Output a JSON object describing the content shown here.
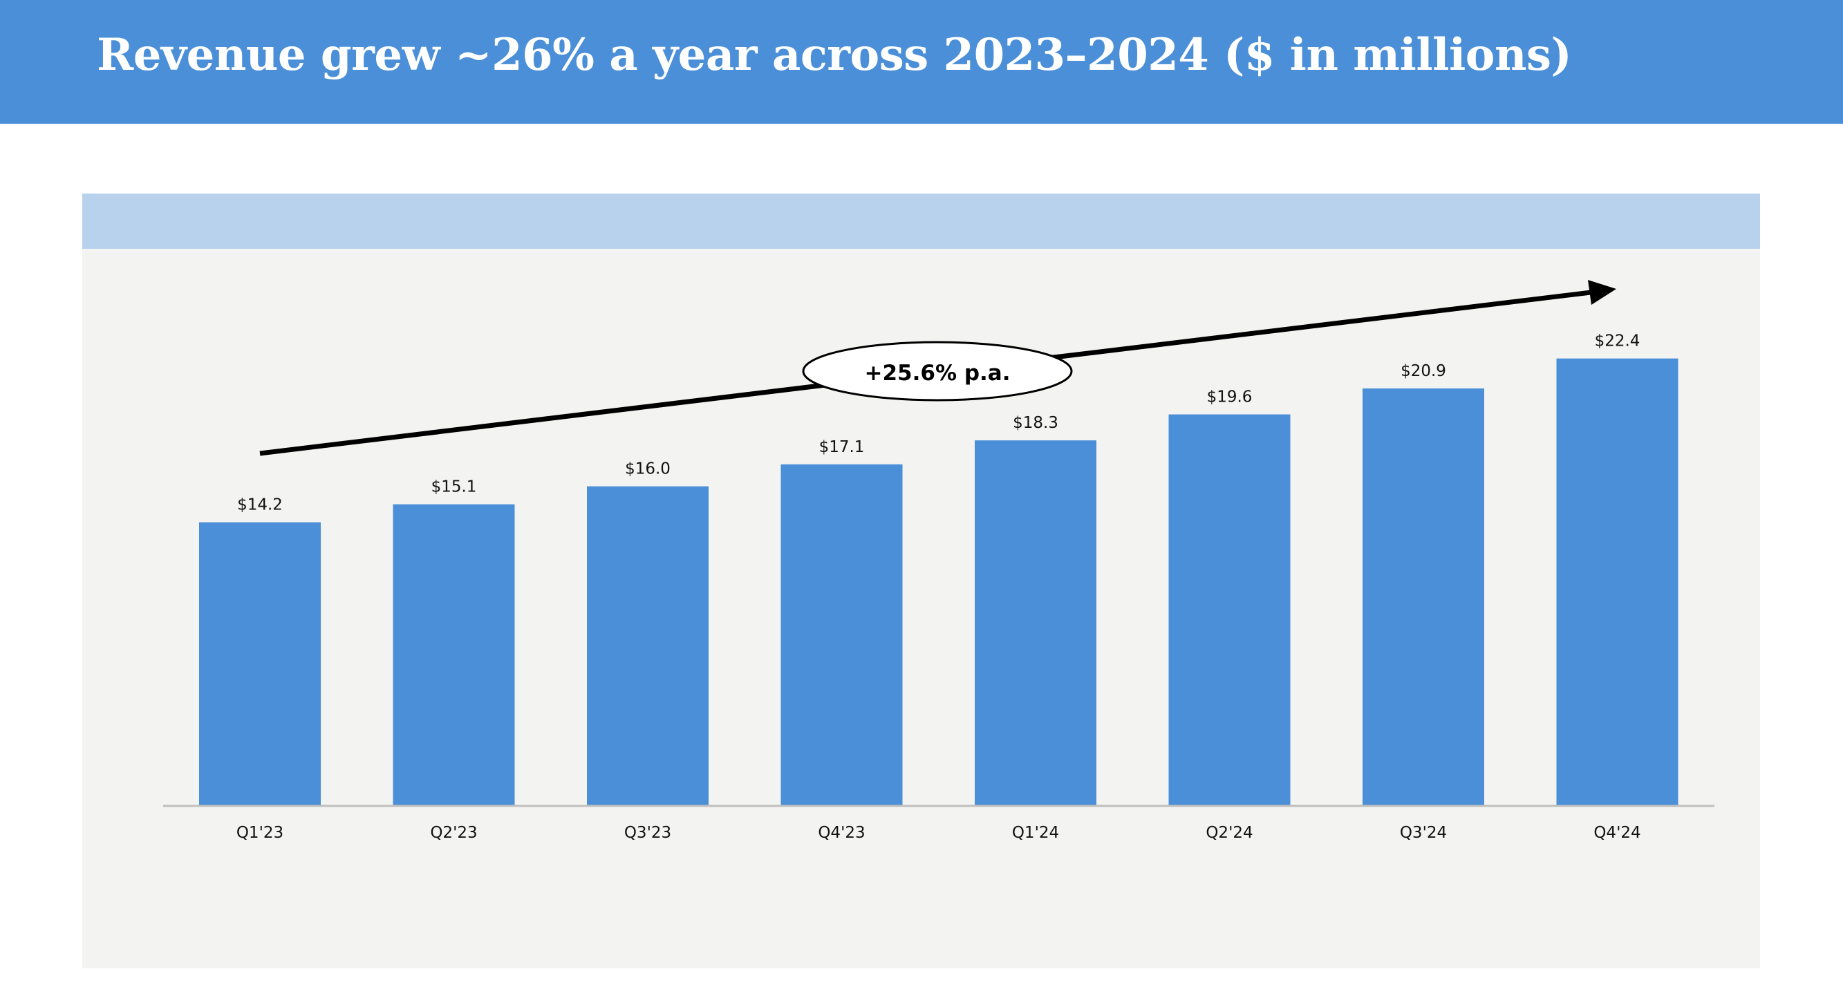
{
  "header": {
    "title": "Revenue grew ~26% a year across 2023–2024 ($ in millions)"
  },
  "colors": {
    "header_bg": "#4a8fd7",
    "bar": "#4a8fd7",
    "panel_band": "#b8d2ee",
    "panel_bg": "#f3f3f1",
    "axis": "#bfbfbf",
    "arrow": "#000000"
  },
  "chart_data": {
    "type": "bar",
    "categories": [
      "Q1'23",
      "Q2'23",
      "Q3'23",
      "Q4'23",
      "Q1'24",
      "Q2'24",
      "Q3'24",
      "Q4'24"
    ],
    "values": [
      14.2,
      15.1,
      16.0,
      17.1,
      18.3,
      19.6,
      20.9,
      22.4
    ],
    "data_labels": [
      "$14.2",
      "$15.1",
      "$16.0",
      "$17.1",
      "$18.3",
      "$19.6",
      "$20.9",
      "$22.4"
    ],
    "title": "Revenue grew ~26% a year across 2023–2024 ($ in millions)",
    "xlabel": "",
    "ylabel": "",
    "ylim": [
      0,
      24
    ],
    "grid": false,
    "annotation": {
      "text": "+25.6% p.a.",
      "type": "growth-arrow"
    }
  }
}
